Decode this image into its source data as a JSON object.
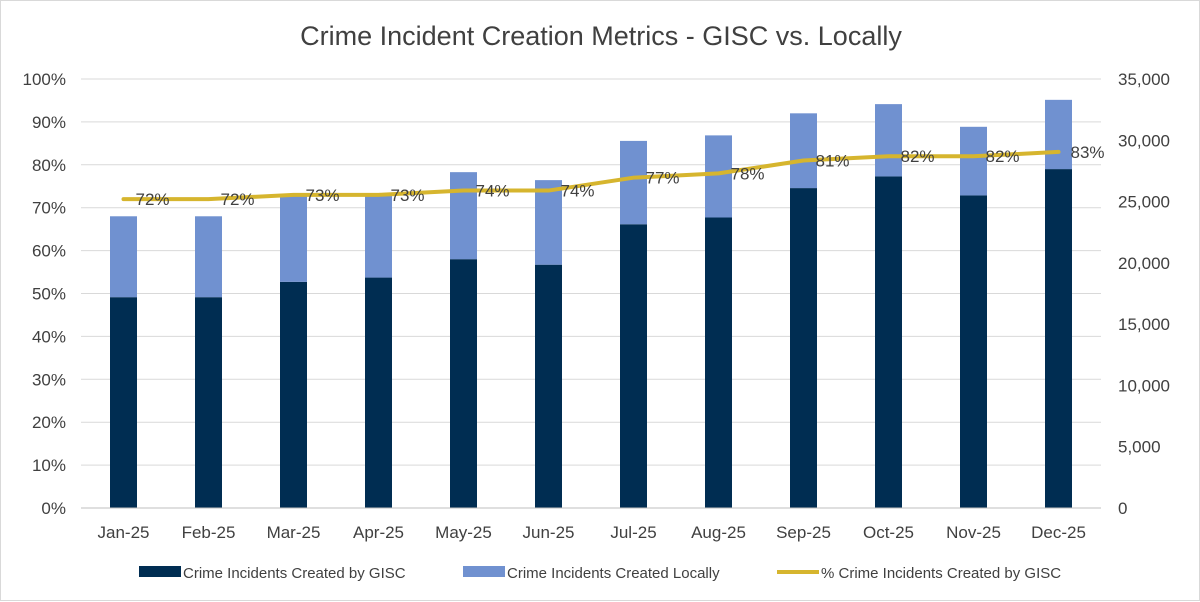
{
  "chart_data": {
    "type": "bar",
    "title": "Crime Incident Creation Metrics - GISC vs. Locally",
    "categories": [
      "Jan-25",
      "Feb-25",
      "Mar-25",
      "Apr-25",
      "May-25",
      "Jun-25",
      "Jul-25",
      "Aug-25",
      "Sep-25",
      "Oct-25",
      "Nov-25",
      "Dec-25"
    ],
    "stacked": true,
    "series": [
      {
        "name": "Crime Incidents Created by GISC",
        "kind": "bar",
        "axis": "right",
        "color": "#002d52",
        "values": [
          17200,
          17200,
          18450,
          18800,
          20300,
          19850,
          23150,
          23700,
          26100,
          27050,
          25500,
          27650
        ]
      },
      {
        "name": "Crime Incidents Created Locally",
        "kind": "bar",
        "axis": "right",
        "color": "#7091d0",
        "values": [
          6600,
          6600,
          7150,
          6850,
          7100,
          6900,
          6800,
          6700,
          6100,
          5900,
          5600,
          5650
        ]
      },
      {
        "name": "% Crime Incidents Created by GISC",
        "kind": "line",
        "axis": "left",
        "color": "#d6b52e",
        "values": [
          72,
          72,
          73,
          73,
          74,
          74,
          77,
          78,
          81,
          82,
          82,
          83
        ],
        "data_labels": [
          "72%",
          "72%",
          "73%",
          "73%",
          "74%",
          "74%",
          "77%",
          "78%",
          "81%",
          "82%",
          "82%",
          "83%"
        ]
      }
    ],
    "y_left": {
      "range": [
        0,
        100
      ],
      "ticks": [
        "0%",
        "10%",
        "20%",
        "30%",
        "40%",
        "50%",
        "60%",
        "70%",
        "80%",
        "90%",
        "100%"
      ]
    },
    "y_right": {
      "range": [
        0,
        35000
      ],
      "ticks": [
        "0",
        "5,000",
        "10,000",
        "15,000",
        "20,000",
        "25,000",
        "30,000",
        "35,000"
      ]
    },
    "grid": true,
    "legend": "bottom"
  }
}
